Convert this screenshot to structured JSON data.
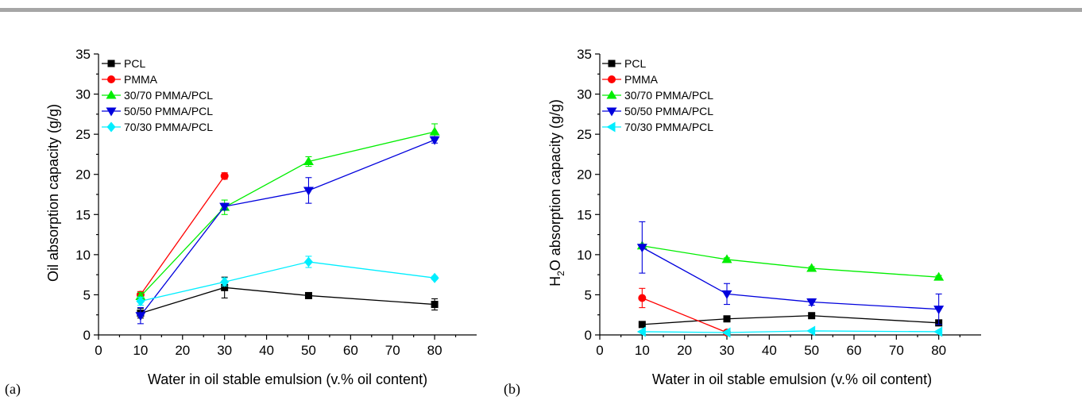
{
  "chart_data": [
    {
      "type": "line",
      "panel_label": "(a)",
      "xlabel": "Water in oil stable emulsion (v.% oil content)",
      "ylabel": "Oil absorption capacity (g/g)",
      "ylabel_sub": "",
      "ylabel_rest": "",
      "xlim": [
        0,
        90
      ],
      "ylim": [
        0,
        35
      ],
      "xticks": [
        0,
        10,
        20,
        30,
        40,
        50,
        60,
        70,
        80
      ],
      "yticks": [
        0,
        5,
        10,
        15,
        20,
        25,
        30,
        35
      ],
      "legend_position": "top-left",
      "series": [
        {
          "name": "PCL",
          "color": "#000000",
          "marker": "square",
          "x": [
            10,
            30,
            50,
            80
          ],
          "y": [
            2.7,
            5.9,
            4.9,
            3.8
          ],
          "err": [
            0.6,
            1.3,
            0.3,
            0.7
          ]
        },
        {
          "name": "PMMA",
          "color": "#ff0000",
          "marker": "circle",
          "x": [
            10,
            30
          ],
          "y": [
            5.0,
            19.8
          ],
          "err": [
            0.4,
            0.4
          ]
        },
        {
          "name": "30/70 PMMA/PCL",
          "color": "#00ee00",
          "marker": "triangle-up",
          "x": [
            10,
            30,
            50,
            80
          ],
          "y": [
            4.8,
            15.9,
            21.6,
            25.3
          ],
          "err": [
            0.5,
            0.9,
            0.6,
            1.0
          ]
        },
        {
          "name": "50/50 PMMA/PCL",
          "color": "#0000dd",
          "marker": "triangle-down",
          "x": [
            10,
            30,
            50,
            80
          ],
          "y": [
            2.4,
            16.0,
            18.0,
            24.3
          ],
          "err": [
            1.0,
            0.4,
            1.6,
            0.4
          ]
        },
        {
          "name": "70/30 PMMA/PCL",
          "color": "#00eeff",
          "marker": "diamond",
          "x": [
            10,
            30,
            50,
            80
          ],
          "y": [
            4.2,
            6.6,
            9.1,
            7.1
          ],
          "err": [
            0.5,
            0.5,
            0.7,
            0.2
          ]
        }
      ]
    },
    {
      "type": "line",
      "panel_label": "(b)",
      "xlabel": "Water in oil stable emulsion (v.% oil content)",
      "ylabel": "H",
      "ylabel_sub": "2",
      "ylabel_rest": "O absorption capacity (g/g)",
      "xlim": [
        0,
        90
      ],
      "ylim": [
        0,
        35
      ],
      "xticks": [
        0,
        10,
        20,
        30,
        40,
        50,
        60,
        70,
        80
      ],
      "yticks": [
        0,
        5,
        10,
        15,
        20,
        25,
        30,
        35
      ],
      "legend_position": "top-left",
      "series": [
        {
          "name": "PCL",
          "color": "#000000",
          "marker": "square",
          "x": [
            10,
            30,
            50,
            80
          ],
          "y": [
            1.3,
            2.0,
            2.4,
            1.5
          ],
          "err": [
            0.1,
            0.1,
            0.1,
            0.1
          ]
        },
        {
          "name": "PMMA",
          "color": "#ff0000",
          "marker": "circle",
          "x": [
            10,
            30
          ],
          "y": [
            4.6,
            0.3
          ],
          "err": [
            1.2,
            0.1
          ]
        },
        {
          "name": "30/70 PMMA/PCL",
          "color": "#00ee00",
          "marker": "triangle-up",
          "x": [
            10,
            30,
            50,
            80
          ],
          "y": [
            11.1,
            9.4,
            8.3,
            7.2
          ],
          "err": [
            0.2,
            0.2,
            0.2,
            0.2
          ]
        },
        {
          "name": "50/50 PMMA/PCL",
          "color": "#0000dd",
          "marker": "triangle-down",
          "x": [
            10,
            30,
            50,
            80
          ],
          "y": [
            10.9,
            5.1,
            4.1,
            3.2
          ],
          "err": [
            3.2,
            1.3,
            0.4,
            1.9
          ]
        },
        {
          "name": "70/30 PMMA/PCL",
          "color": "#00eeff",
          "marker": "triangle-left",
          "x": [
            10,
            30,
            50,
            80
          ],
          "y": [
            0.4,
            0.3,
            0.5,
            0.4
          ],
          "err": [
            0.05,
            0.05,
            0.05,
            0.05
          ]
        }
      ]
    }
  ]
}
